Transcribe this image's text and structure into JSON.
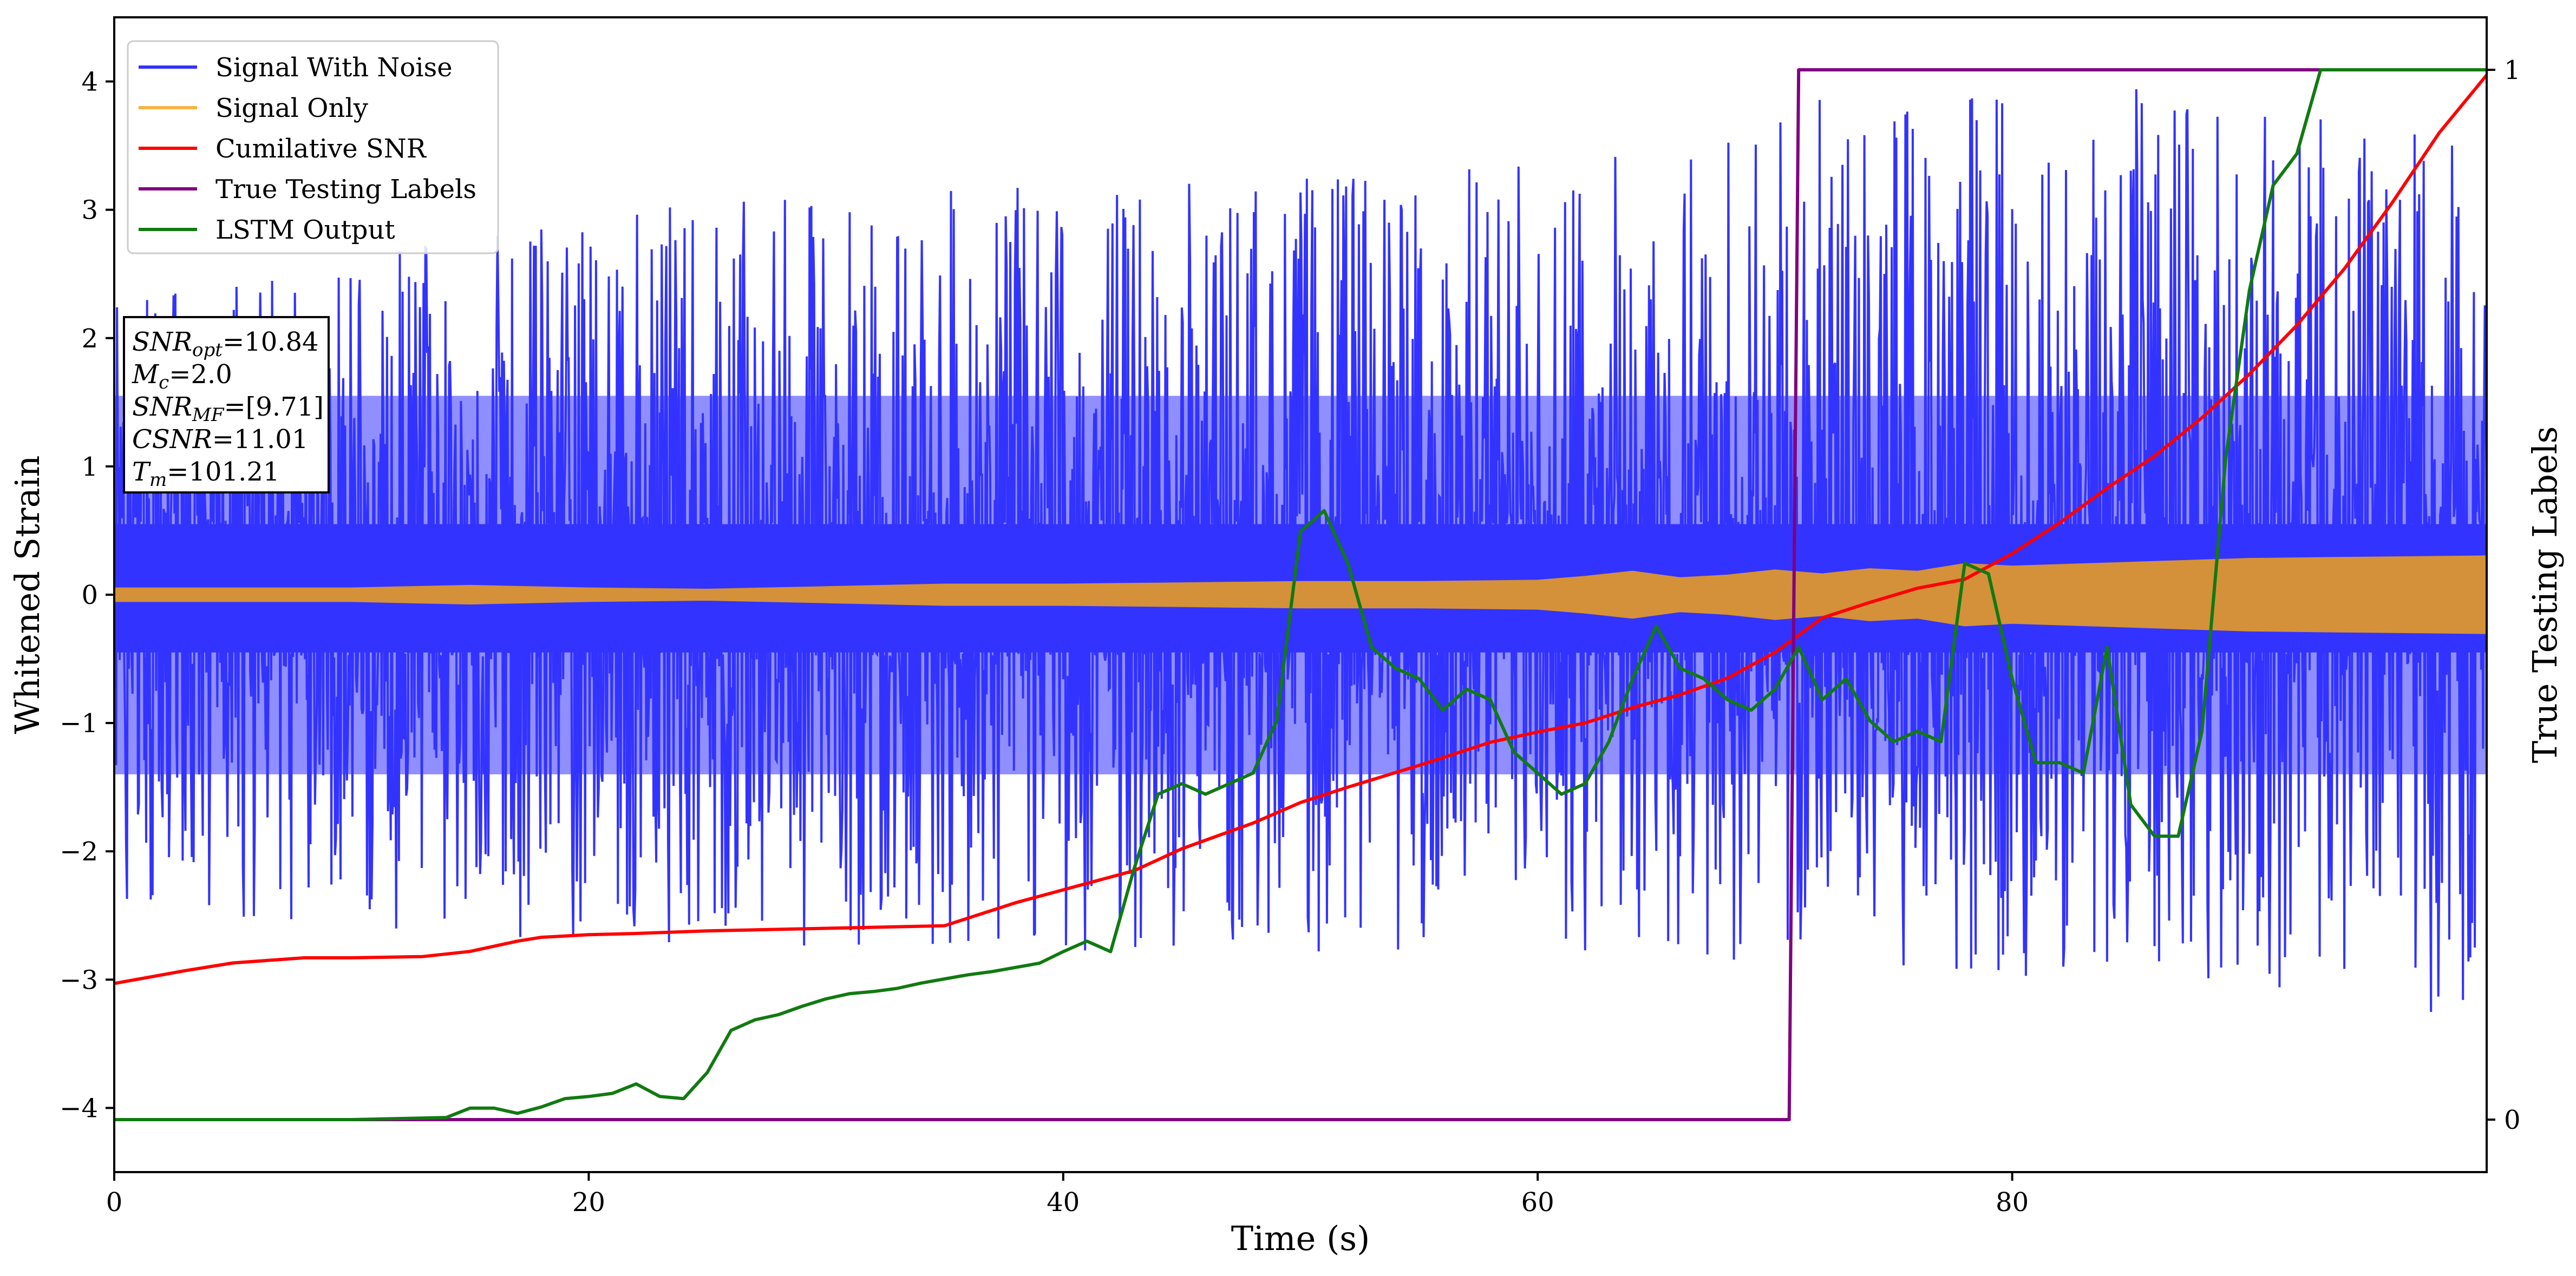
{
  "chart_data": {
    "type": "line",
    "xlabel": "Time (s)",
    "ylabel": "Whitened Strain",
    "y2label": "True Testing Labels",
    "xlim": [
      0,
      100
    ],
    "ylim": [
      -4.5,
      4.5
    ],
    "y2lim": [
      -0.05,
      1.05
    ],
    "grid": false,
    "legend_position": "top-left",
    "x_ticks": [
      0,
      20,
      40,
      60,
      80
    ],
    "y_ticks": [
      -4,
      -3,
      -2,
      -1,
      0,
      1,
      2,
      3,
      4
    ],
    "y2_ticks": [
      0,
      1
    ],
    "x_tick_labels": [
      "0",
      "20",
      "40",
      "60",
      "80"
    ],
    "y_tick_labels": [
      "−4",
      "−3",
      "−2",
      "−1",
      "0",
      "1",
      "2",
      "3",
      "4"
    ],
    "y2_tick_labels": [
      "0",
      "1"
    ],
    "legend": [
      {
        "label": "Signal With Noise",
        "color": "#3333ff"
      },
      {
        "label": "Signal Only",
        "color": "#f5b342"
      },
      {
        "label": "Cumilative SNR",
        "color": "#ff0000"
      },
      {
        "label": "True Testing Labels",
        "color": "#800080"
      },
      {
        "label": "LSTM Output",
        "color": "#117a11"
      }
    ],
    "annotation": [
      {
        "sym": "SNR",
        "sub": "opt",
        "rest": "=10.84"
      },
      {
        "sym": "M",
        "sub": "c",
        "rest": "=2.0"
      },
      {
        "sym": "SNR",
        "sub": "MF",
        "rest": "=[9.71]"
      },
      {
        "sym": "CSNR",
        "sub": "",
        "rest": "=11.01"
      },
      {
        "sym": "T",
        "sub": "m",
        "rest": "=101.21"
      }
    ],
    "series": [
      {
        "name": "Signal With Noise",
        "axis": "left",
        "color": "#3333ff",
        "style": "noise",
        "core_band": [
          -0.45,
          0.55
        ],
        "dense_band": [
          -1.4,
          1.55
        ],
        "envelope": {
          "x": [
            0,
            20,
            40,
            60,
            70,
            80,
            90,
            100
          ],
          "low": [
            -2.5,
            -2.7,
            -2.8,
            -2.8,
            -2.9,
            -3.0,
            -3.0,
            -3.5
          ],
          "high": [
            2.3,
            3.0,
            3.2,
            3.4,
            3.8,
            4.1,
            3.8,
            3.6
          ]
        }
      },
      {
        "name": "Signal Only",
        "axis": "left",
        "color": "#d4913a",
        "style": "band",
        "x": [
          0,
          5,
          10,
          15,
          20,
          25,
          30,
          35,
          40,
          45,
          50,
          55,
          60,
          62,
          64,
          66,
          68,
          70,
          72,
          74,
          76,
          78,
          80,
          85,
          90,
          95,
          100
        ],
        "amplitude": [
          0.05,
          0.05,
          0.05,
          0.07,
          0.05,
          0.04,
          0.06,
          0.08,
          0.08,
          0.09,
          0.1,
          0.1,
          0.11,
          0.14,
          0.18,
          0.13,
          0.15,
          0.19,
          0.16,
          0.2,
          0.18,
          0.24,
          0.22,
          0.25,
          0.28,
          0.29,
          0.3
        ]
      },
      {
        "name": "Cumilative SNR",
        "axis": "left",
        "color": "#ff0000",
        "x": [
          0,
          3,
          5,
          8,
          10,
          13,
          15,
          17,
          18,
          20,
          22,
          25,
          30,
          35,
          38,
          40,
          43,
          45,
          48,
          50,
          52,
          55,
          58,
          60,
          62,
          64,
          66,
          68,
          70,
          72,
          74,
          76,
          78,
          80,
          82,
          84,
          86,
          88,
          90,
          92,
          94,
          96,
          98,
          100
        ],
        "y": [
          -3.03,
          -2.93,
          -2.87,
          -2.83,
          -2.83,
          -2.82,
          -2.78,
          -2.7,
          -2.67,
          -2.65,
          -2.64,
          -2.62,
          -2.6,
          -2.58,
          -2.4,
          -2.3,
          -2.15,
          -1.98,
          -1.78,
          -1.62,
          -1.5,
          -1.33,
          -1.15,
          -1.07,
          -1.0,
          -0.88,
          -0.78,
          -0.65,
          -0.45,
          -0.18,
          -0.06,
          0.05,
          0.12,
          0.32,
          0.56,
          0.83,
          1.08,
          1.38,
          1.72,
          2.1,
          2.54,
          3.05,
          3.6,
          4.05
        ]
      },
      {
        "name": "True Testing Labels",
        "axis": "right",
        "color": "#800080",
        "x": [
          0,
          70.6,
          71.0,
          100
        ],
        "y": [
          0,
          0,
          1,
          1
        ]
      },
      {
        "name": "LSTM Output",
        "axis": "right",
        "color": "#117a11",
        "x": [
          0,
          10,
          14,
          15,
          16,
          17,
          18,
          19,
          20,
          21,
          22,
          23,
          24,
          25,
          26,
          27,
          28,
          29,
          30,
          31,
          32,
          33,
          34,
          35,
          36,
          37,
          38,
          39,
          40,
          41,
          42,
          43,
          44,
          45,
          46,
          47,
          48,
          49,
          50,
          51,
          52,
          53,
          54,
          55,
          56,
          57,
          58,
          59,
          60,
          61,
          62,
          63,
          64,
          65,
          66,
          67,
          68,
          69,
          70,
          71,
          72,
          73,
          74,
          75,
          76,
          77,
          78,
          79,
          80,
          81,
          82,
          83,
          84,
          85,
          86,
          87,
          88,
          89,
          90,
          91,
          92,
          93,
          94,
          95,
          100
        ],
        "y": [
          0,
          0,
          0.002,
          0.011,
          0.011,
          0.006,
          0.012,
          0.02,
          0.022,
          0.025,
          0.034,
          0.022,
          0.02,
          0.045,
          0.085,
          0.095,
          0.1,
          0.108,
          0.115,
          0.12,
          0.122,
          0.125,
          0.13,
          0.134,
          0.138,
          0.141,
          0.145,
          0.149,
          0.16,
          0.17,
          0.16,
          0.24,
          0.31,
          0.32,
          0.31,
          0.32,
          0.33,
          0.38,
          0.56,
          0.58,
          0.53,
          0.45,
          0.43,
          0.42,
          0.39,
          0.41,
          0.4,
          0.35,
          0.33,
          0.31,
          0.32,
          0.36,
          0.42,
          0.47,
          0.43,
          0.42,
          0.4,
          0.39,
          0.41,
          0.45,
          0.4,
          0.42,
          0.38,
          0.36,
          0.37,
          0.36,
          0.53,
          0.52,
          0.42,
          0.34,
          0.34,
          0.33,
          0.45,
          0.3,
          0.27,
          0.27,
          0.37,
          0.63,
          0.79,
          0.89,
          0.92,
          1.0,
          1.0,
          1.0,
          1.0
        ]
      }
    ]
  }
}
